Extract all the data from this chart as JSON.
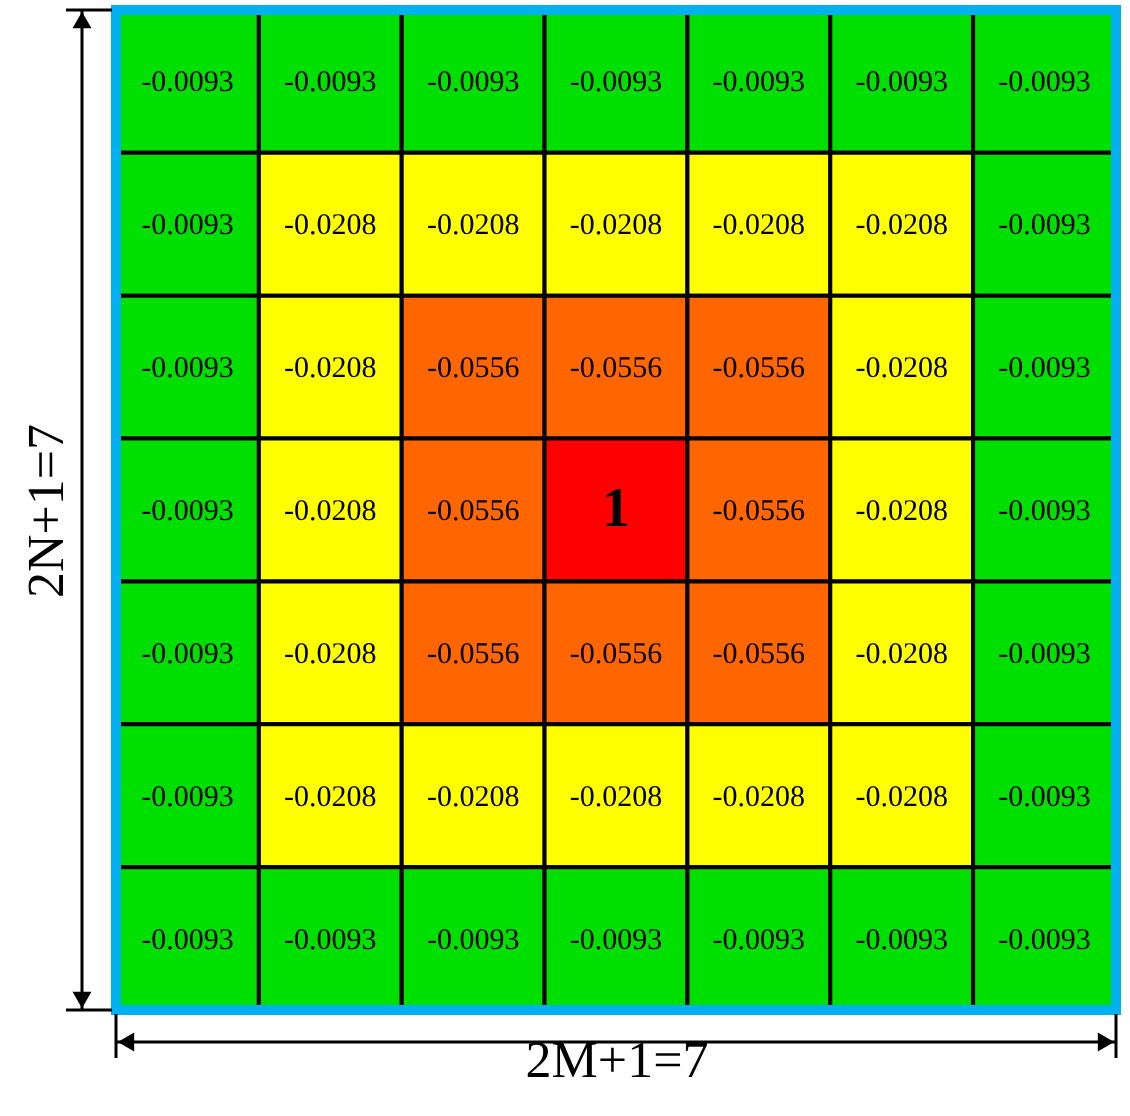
{
  "chart_data": {
    "type": "heatmap",
    "xlabel": "2M+1=7",
    "ylabel": "2N+1=7",
    "categories": [
      null,
      null,
      null,
      null,
      null,
      null,
      null
    ],
    "y_categories": [
      null,
      null,
      null,
      null,
      null,
      null,
      null
    ],
    "cells": [
      [
        -0.0093,
        -0.0093,
        -0.0093,
        -0.0093,
        -0.0093,
        -0.0093,
        -0.0093
      ],
      [
        -0.0093,
        -0.0208,
        -0.0208,
        -0.0208,
        -0.0208,
        -0.0208,
        -0.0093
      ],
      [
        -0.0093,
        -0.0208,
        -0.0556,
        -0.0556,
        -0.0556,
        -0.0208,
        -0.0093
      ],
      [
        -0.0093,
        -0.0208,
        -0.0556,
        1,
        -0.0556,
        -0.0208,
        -0.0093
      ],
      [
        -0.0093,
        -0.0208,
        -0.0556,
        -0.0556,
        -0.0556,
        -0.0208,
        -0.0093
      ],
      [
        -0.0093,
        -0.0208,
        -0.0208,
        -0.0208,
        -0.0208,
        -0.0208,
        -0.0093
      ],
      [
        -0.0093,
        -0.0093,
        -0.0093,
        -0.0093,
        -0.0093,
        -0.0093,
        -0.0093
      ]
    ],
    "colors": [
      [
        "#00e000",
        "#00e000",
        "#00e000",
        "#00e000",
        "#00e000",
        "#00e000",
        "#00e000"
      ],
      [
        "#00e000",
        "#ffff00",
        "#ffff00",
        "#ffff00",
        "#ffff00",
        "#ffff00",
        "#00e000"
      ],
      [
        "#00e000",
        "#ffff00",
        "#ff6600",
        "#ff6600",
        "#ff6600",
        "#ffff00",
        "#00e000"
      ],
      [
        "#00e000",
        "#ffff00",
        "#ff6600",
        "#ff0000",
        "#ff6600",
        "#ffff00",
        "#00e000"
      ],
      [
        "#00e000",
        "#ffff00",
        "#ff6600",
        "#ff6600",
        "#ff6600",
        "#ffff00",
        "#00e000"
      ],
      [
        "#00e000",
        "#ffff00",
        "#ffff00",
        "#ffff00",
        "#ffff00",
        "#ffff00",
        "#00e000"
      ],
      [
        "#00e000",
        "#00e000",
        "#00e000",
        "#00e000",
        "#00e000",
        "#00e000",
        "#00e000"
      ]
    ],
    "data_labels": true
  }
}
